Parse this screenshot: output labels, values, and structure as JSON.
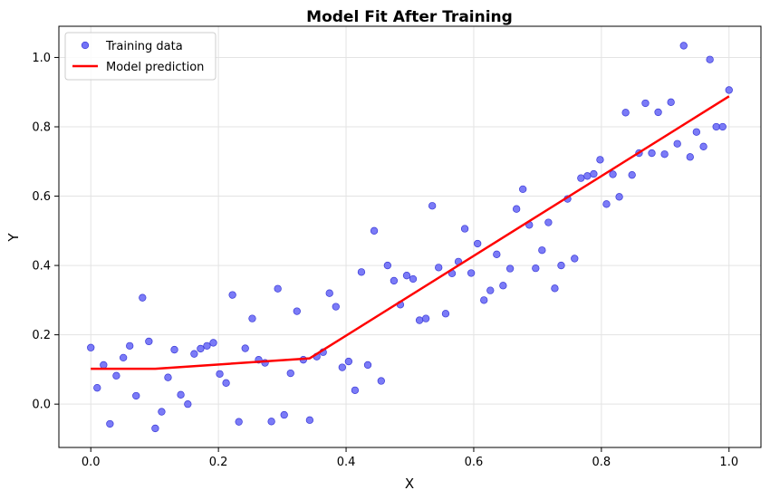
{
  "chart_data": {
    "type": "scatter",
    "title": "Model Fit After Training",
    "xlabel": "X",
    "ylabel": "Y",
    "xlim": [
      -0.05,
      1.05
    ],
    "ylim": [
      -0.125,
      1.09
    ],
    "xticks": [
      "0.0",
      "0.2",
      "0.4",
      "0.6",
      "0.8",
      "1.0"
    ],
    "yticks": [
      "0.0",
      "0.2",
      "0.4",
      "0.6",
      "0.8",
      "1.0"
    ],
    "grid": true,
    "legend_position": "top-left",
    "series": [
      {
        "name": "Training data",
        "kind": "scatter",
        "color": "#5a5af5",
        "points": [
          [
            0.0,
            0.163
          ],
          [
            0.01,
            0.047
          ],
          [
            0.02,
            0.113
          ],
          [
            0.03,
            -0.057
          ],
          [
            0.04,
            0.082
          ],
          [
            0.051,
            0.134
          ],
          [
            0.061,
            0.168
          ],
          [
            0.071,
            0.024
          ],
          [
            0.081,
            0.307
          ],
          [
            0.091,
            0.181
          ],
          [
            0.101,
            -0.07
          ],
          [
            0.111,
            -0.022
          ],
          [
            0.121,
            0.077
          ],
          [
            0.131,
            0.157
          ],
          [
            0.141,
            0.027
          ],
          [
            0.152,
            0.0
          ],
          [
            0.162,
            0.145
          ],
          [
            0.172,
            0.16
          ],
          [
            0.182,
            0.168
          ],
          [
            0.192,
            0.177
          ],
          [
            0.202,
            0.087
          ],
          [
            0.212,
            0.061
          ],
          [
            0.222,
            0.315
          ],
          [
            0.232,
            -0.051
          ],
          [
            0.242,
            0.161
          ],
          [
            0.253,
            0.247
          ],
          [
            0.263,
            0.128
          ],
          [
            0.273,
            0.119
          ],
          [
            0.283,
            -0.05
          ],
          [
            0.293,
            0.333
          ],
          [
            0.303,
            -0.031
          ],
          [
            0.313,
            0.089
          ],
          [
            0.323,
            0.268
          ],
          [
            0.333,
            0.128
          ],
          [
            0.343,
            -0.046
          ],
          [
            0.354,
            0.137
          ],
          [
            0.364,
            0.15
          ],
          [
            0.374,
            0.32
          ],
          [
            0.384,
            0.281
          ],
          [
            0.394,
            0.106
          ],
          [
            0.404,
            0.123
          ],
          [
            0.414,
            0.04
          ],
          [
            0.424,
            0.381
          ],
          [
            0.434,
            0.113
          ],
          [
            0.444,
            0.5
          ],
          [
            0.455,
            0.067
          ],
          [
            0.465,
            0.4
          ],
          [
            0.475,
            0.356
          ],
          [
            0.485,
            0.287
          ],
          [
            0.495,
            0.371
          ],
          [
            0.505,
            0.361
          ],
          [
            0.515,
            0.242
          ],
          [
            0.525,
            0.247
          ],
          [
            0.535,
            0.572
          ],
          [
            0.545,
            0.394
          ],
          [
            0.556,
            0.261
          ],
          [
            0.566,
            0.377
          ],
          [
            0.576,
            0.411
          ],
          [
            0.586,
            0.506
          ],
          [
            0.596,
            0.378
          ],
          [
            0.606,
            0.463
          ],
          [
            0.616,
            0.3
          ],
          [
            0.626,
            0.328
          ],
          [
            0.636,
            0.432
          ],
          [
            0.646,
            0.342
          ],
          [
            0.657,
            0.391
          ],
          [
            0.667,
            0.563
          ],
          [
            0.677,
            0.62
          ],
          [
            0.687,
            0.517
          ],
          [
            0.697,
            0.392
          ],
          [
            0.707,
            0.444
          ],
          [
            0.717,
            0.524
          ],
          [
            0.727,
            0.334
          ],
          [
            0.737,
            0.4
          ],
          [
            0.747,
            0.592
          ],
          [
            0.758,
            0.42
          ],
          [
            0.768,
            0.652
          ],
          [
            0.778,
            0.658
          ],
          [
            0.788,
            0.664
          ],
          [
            0.798,
            0.705
          ],
          [
            0.808,
            0.577
          ],
          [
            0.818,
            0.663
          ],
          [
            0.828,
            0.598
          ],
          [
            0.838,
            0.841
          ],
          [
            0.848,
            0.661
          ],
          [
            0.859,
            0.724
          ],
          [
            0.869,
            0.868
          ],
          [
            0.879,
            0.724
          ],
          [
            0.889,
            0.842
          ],
          [
            0.899,
            0.721
          ],
          [
            0.909,
            0.871
          ],
          [
            0.919,
            0.751
          ],
          [
            0.929,
            1.034
          ],
          [
            0.939,
            0.713
          ],
          [
            0.949,
            0.785
          ],
          [
            0.96,
            0.743
          ],
          [
            0.97,
            0.994
          ],
          [
            0.98,
            0.8
          ],
          [
            0.99,
            0.8
          ],
          [
            1.0,
            0.906
          ]
        ]
      },
      {
        "name": "Model prediction",
        "kind": "line",
        "color": "#ff0000",
        "points": [
          [
            0.0,
            0.102
          ],
          [
            0.101,
            0.102
          ],
          [
            0.343,
            0.132
          ],
          [
            1.0,
            0.888
          ]
        ]
      }
    ]
  }
}
